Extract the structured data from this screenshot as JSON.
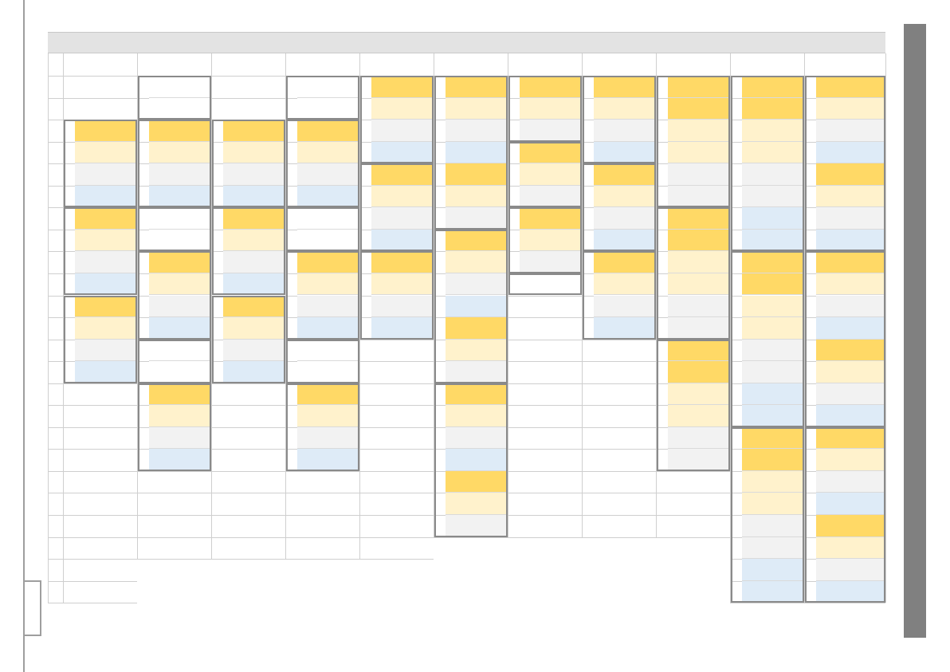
{
  "colors": {
    "slot_header": "#ffd966",
    "slot_light": "#fff2cc",
    "slot_gray": "#f2f2f2",
    "slot_blue": "#deebf7",
    "grid_line": "#cfcfcf",
    "group_border": "#8a8a8a",
    "header_bar": "#e3e3e3",
    "scrollbar": "#808080"
  },
  "legend": {
    "h": "slot_header",
    "l": "slot_light",
    "g": "slot_gray",
    "b": "slot_blue"
  },
  "grid": {
    "columns": 11,
    "rows": 25
  },
  "columns": [
    {
      "groups": [
        {
          "start": 3,
          "rows": 4,
          "stack": "hlgb"
        },
        {
          "start": 7,
          "rows": 4,
          "stack": "hlgb"
        },
        {
          "start": 11,
          "rows": 4,
          "stack": "hlgb"
        }
      ]
    },
    {
      "groups": [
        {
          "start": 1,
          "rows": 2,
          "stack": ""
        },
        {
          "start": 3,
          "rows": 4,
          "stack": "hlgb"
        },
        {
          "start": 7,
          "rows": 2,
          "stack": ""
        },
        {
          "start": 9,
          "rows": 4,
          "stack": "hlgb"
        },
        {
          "start": 13,
          "rows": 2,
          "stack": ""
        },
        {
          "start": 15,
          "rows": 4,
          "stack": "hlgb"
        }
      ]
    },
    {
      "groups": [
        {
          "start": 3,
          "rows": 4,
          "stack": "hlgb"
        },
        {
          "start": 7,
          "rows": 4,
          "stack": "hlgb"
        },
        {
          "start": 11,
          "rows": 4,
          "stack": "hlgb"
        }
      ]
    },
    {
      "groups": [
        {
          "start": 1,
          "rows": 2,
          "stack": ""
        },
        {
          "start": 3,
          "rows": 4,
          "stack": "hlgb"
        },
        {
          "start": 7,
          "rows": 2,
          "stack": ""
        },
        {
          "start": 9,
          "rows": 4,
          "stack": "hlgb"
        },
        {
          "start": 13,
          "rows": 2,
          "stack": ""
        },
        {
          "start": 15,
          "rows": 4,
          "stack": "hlgb"
        }
      ]
    },
    {
      "groups": [
        {
          "start": 1,
          "rows": 4,
          "stack": "hlgb"
        },
        {
          "start": 5,
          "rows": 4,
          "stack": "hlgb"
        },
        {
          "start": 9,
          "rows": 4,
          "stack": "hlgb"
        }
      ]
    },
    {
      "groups": [
        {
          "start": 1,
          "rows": 7,
          "stack": "hlgb"
        },
        {
          "start": 8,
          "rows": 7,
          "stack": "hlgb"
        },
        {
          "start": 15,
          "rows": 7,
          "stack": "hlgb"
        }
      ]
    },
    {
      "groups": [
        {
          "start": 1,
          "rows": 3,
          "stack": "hlg"
        },
        {
          "start": 4,
          "rows": 3,
          "stack": "hlg"
        },
        {
          "start": 7,
          "rows": 3,
          "stack": "hlg"
        },
        {
          "start": 10,
          "rows": 1,
          "stack": ""
        }
      ]
    },
    {
      "groups": [
        {
          "start": 1,
          "rows": 4,
          "stack": "hlgb"
        },
        {
          "start": 5,
          "rows": 4,
          "stack": "hlgb"
        },
        {
          "start": 9,
          "rows": 4,
          "stack": "hlgb"
        }
      ]
    },
    {
      "groups": [
        {
          "start": 1,
          "rows": 6,
          "stack": "hhllgg"
        },
        {
          "start": 7,
          "rows": 6,
          "stack": "hhllgg"
        },
        {
          "start": 13,
          "rows": 6,
          "stack": "hhllgg"
        }
      ]
    },
    {
      "groups": [
        {
          "start": 1,
          "rows": 8,
          "stack": "hhllggbb"
        },
        {
          "start": 9,
          "rows": 8,
          "stack": "hhllggbb"
        },
        {
          "start": 17,
          "rows": 8,
          "stack": "hhllggbb"
        }
      ]
    },
    {
      "groups": [
        {
          "start": 1,
          "rows": 8,
          "stack": "hlgb"
        },
        {
          "start": 9,
          "rows": 8,
          "stack": "hlgb"
        },
        {
          "start": 17,
          "rows": 8,
          "stack": "hlgb"
        }
      ]
    }
  ],
  "borders": [
    {
      "col_from": 1,
      "col_to": 2,
      "row_from": 3,
      "row_to": 12
    },
    {
      "col_from": 2,
      "col_to": 2,
      "row_from": 1,
      "row_to": 18
    },
    {
      "col_from": 3,
      "col_to": 3,
      "row_from": 3,
      "row_to": 14
    },
    {
      "col_from": 4,
      "col_to": 4,
      "row_from": 1,
      "row_to": 18
    },
    {
      "col_from": 5,
      "col_to": 5,
      "row_from": 1,
      "row_to": 12
    },
    {
      "col_from": 6,
      "col_to": 6,
      "row_from": 1,
      "row_to": 21
    },
    {
      "col_from": 7,
      "col_to": 7,
      "row_from": 1,
      "row_to": 10
    },
    {
      "col_from": 8,
      "col_to": 8,
      "row_from": 1,
      "row_to": 12
    },
    {
      "col_from": 9,
      "col_to": 9,
      "row_from": 1,
      "row_to": 18
    },
    {
      "col_from": 10,
      "col_to": 10,
      "row_from": 1,
      "row_to": 24
    },
    {
      "col_from": 11,
      "col_to": 11,
      "row_from": 1,
      "row_to": 24
    }
  ],
  "grid_extent": [
    {
      "col": 1,
      "rows": 24
    },
    {
      "col": 2,
      "rows": 22
    },
    {
      "col": 3,
      "rows": 22
    },
    {
      "col": 4,
      "rows": 22
    },
    {
      "col": 5,
      "rows": 22
    },
    {
      "col": 6,
      "rows": 21
    },
    {
      "col": 7,
      "rows": 21
    },
    {
      "col": 8,
      "rows": 21
    },
    {
      "col": 9,
      "rows": 21
    },
    {
      "col": 10,
      "rows": 24
    },
    {
      "col": 11,
      "rows": 24
    }
  ]
}
